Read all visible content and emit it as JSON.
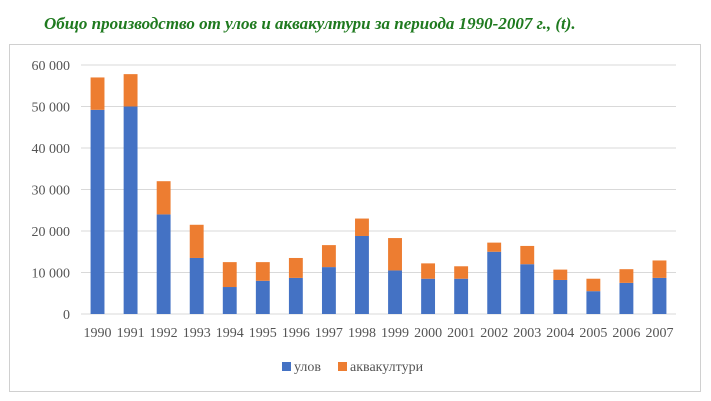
{
  "title": "Общо производство от улов и аквакултури за периода 1990-2007 г., (t).",
  "colors": {
    "catch": "#4472c4",
    "aquaculture": "#ed7d31",
    "grid": "#d9d9d9"
  },
  "chart_data": {
    "type": "bar",
    "stacked": true,
    "categories": [
      "1990",
      "1991",
      "1992",
      "1993",
      "1994",
      "1995",
      "1996",
      "1997",
      "1998",
      "1999",
      "2000",
      "2001",
      "2002",
      "2003",
      "2004",
      "2005",
      "2006",
      "2007"
    ],
    "series": [
      {
        "name": "улов",
        "values": [
          49200,
          50000,
          24000,
          13500,
          6500,
          8000,
          8700,
          11300,
          18800,
          10500,
          8500,
          8500,
          15000,
          12000,
          8200,
          5500,
          7500,
          8700
        ]
      },
      {
        "name": "аквакултури",
        "values": [
          7800,
          7800,
          8000,
          8000,
          6000,
          4500,
          4800,
          5300,
          4200,
          7800,
          3700,
          3000,
          2200,
          4400,
          2500,
          3000,
          3300,
          4200
        ]
      }
    ],
    "yticks": [
      "0",
      "10 000",
      "20 000",
      "30 000",
      "40 000",
      "50 000",
      "60 000"
    ],
    "ylim": [
      0,
      60000
    ],
    "grid": true,
    "legend": "bottom"
  }
}
